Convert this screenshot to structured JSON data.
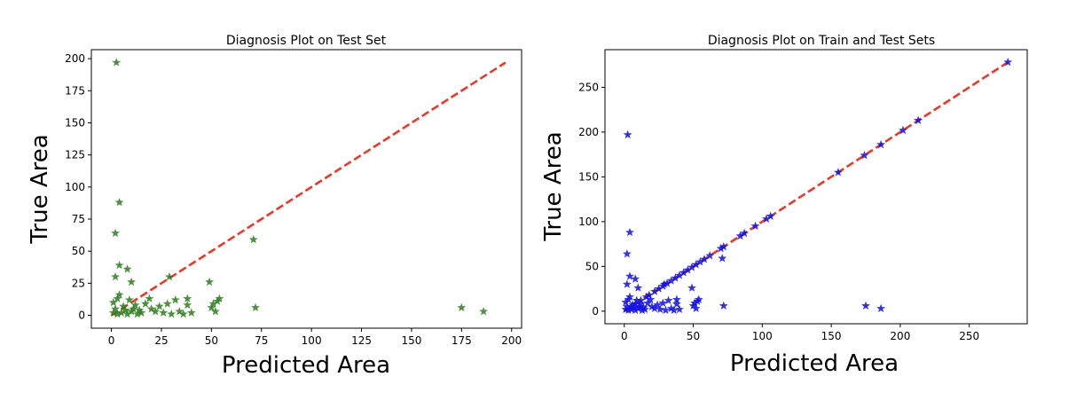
{
  "chart_data": [
    {
      "type": "scatter",
      "title": "Diagnosis Plot on Test Set",
      "xlabel": "Predicted Area",
      "ylabel": "True Area",
      "xlim": [
        -10,
        205
      ],
      "ylim": [
        -10,
        207
      ],
      "xticks": [
        0,
        25,
        50,
        75,
        100,
        125,
        150,
        175,
        200
      ],
      "yticks": [
        0,
        25,
        50,
        75,
        100,
        125,
        150,
        175,
        200
      ],
      "grid": false,
      "marker_color": "#2e7d1f",
      "reference_line": {
        "x": [
          0,
          197
        ],
        "y": [
          0,
          197
        ],
        "color": "#e8392a",
        "style": "dashed"
      },
      "points": [
        [
          2.5,
          197
        ],
        [
          4,
          88
        ],
        [
          2,
          64
        ],
        [
          4,
          39
        ],
        [
          8,
          36
        ],
        [
          2,
          30
        ],
        [
          10,
          26
        ],
        [
          1,
          10
        ],
        [
          2,
          5
        ],
        [
          3,
          13
        ],
        [
          4,
          16
        ],
        [
          5,
          2
        ],
        [
          6,
          7
        ],
        [
          7,
          4
        ],
        [
          8,
          1
        ],
        [
          9,
          12
        ],
        [
          10,
          3
        ],
        [
          11,
          5
        ],
        [
          12,
          8
        ],
        [
          13,
          1
        ],
        [
          14,
          4
        ],
        [
          3,
          1
        ],
        [
          1,
          2
        ],
        [
          15,
          2
        ],
        [
          17,
          9
        ],
        [
          19,
          13
        ],
        [
          20,
          5
        ],
        [
          22,
          3
        ],
        [
          24,
          7
        ],
        [
          26,
          2
        ],
        [
          28,
          9
        ],
        [
          29,
          30
        ],
        [
          30,
          1
        ],
        [
          32,
          12
        ],
        [
          34,
          3
        ],
        [
          36,
          1
        ],
        [
          38,
          8
        ],
        [
          38,
          13
        ],
        [
          40,
          2
        ],
        [
          49,
          26
        ],
        [
          50,
          6
        ],
        [
          51,
          9
        ],
        [
          52,
          3
        ],
        [
          53,
          11
        ],
        [
          54,
          13
        ],
        [
          71,
          59
        ],
        [
          72,
          6
        ],
        [
          175,
          6
        ],
        [
          186,
          3
        ]
      ]
    },
    {
      "type": "scatter",
      "title": "Diagnosis Plot on Train and Test Sets",
      "xlabel": "Predicted Area",
      "ylabel": "True Area",
      "xlim": [
        -14,
        292
      ],
      "ylim": [
        -14,
        292
      ],
      "xticks": [
        0,
        50,
        100,
        150,
        200,
        250
      ],
      "yticks": [
        0,
        50,
        100,
        150,
        200,
        250
      ],
      "grid": false,
      "marker_color": "#1010e0",
      "reference_line": {
        "x": [
          0,
          278
        ],
        "y": [
          0,
          278
        ],
        "color": "#e8392a",
        "style": "dashed"
      },
      "points": [
        [
          2.5,
          197
        ],
        [
          4,
          88
        ],
        [
          2,
          64
        ],
        [
          4,
          39
        ],
        [
          8,
          36
        ],
        [
          2,
          30
        ],
        [
          10,
          26
        ],
        [
          1,
          10
        ],
        [
          2,
          5
        ],
        [
          3,
          13
        ],
        [
          4,
          16
        ],
        [
          5,
          2
        ],
        [
          6,
          7
        ],
        [
          7,
          4
        ],
        [
          8,
          1
        ],
        [
          9,
          12
        ],
        [
          10,
          3
        ],
        [
          11,
          5
        ],
        [
          12,
          8
        ],
        [
          13,
          1
        ],
        [
          14,
          4
        ],
        [
          3,
          1
        ],
        [
          1,
          2
        ],
        [
          15,
          2
        ],
        [
          17,
          9
        ],
        [
          19,
          13
        ],
        [
          20,
          5
        ],
        [
          22,
          3
        ],
        [
          24,
          7
        ],
        [
          26,
          2
        ],
        [
          28,
          9
        ],
        [
          29,
          30
        ],
        [
          30,
          1
        ],
        [
          32,
          12
        ],
        [
          34,
          3
        ],
        [
          36,
          1
        ],
        [
          38,
          8
        ],
        [
          38,
          13
        ],
        [
          40,
          2
        ],
        [
          49,
          26
        ],
        [
          50,
          6
        ],
        [
          51,
          9
        ],
        [
          52,
          3
        ],
        [
          53,
          11
        ],
        [
          54,
          13
        ],
        [
          71,
          59
        ],
        [
          72,
          6
        ],
        [
          175,
          6
        ],
        [
          186,
          3
        ],
        [
          5,
          5
        ],
        [
          8,
          8
        ],
        [
          12,
          12
        ],
        [
          16,
          16
        ],
        [
          18,
          18
        ],
        [
          22,
          22
        ],
        [
          25,
          25
        ],
        [
          28,
          28
        ],
        [
          31,
          31
        ],
        [
          34,
          34
        ],
        [
          37,
          37
        ],
        [
          40,
          40
        ],
        [
          43,
          43
        ],
        [
          46,
          46
        ],
        [
          49,
          49
        ],
        [
          52,
          52
        ],
        [
          55,
          55
        ],
        [
          58,
          58
        ],
        [
          62,
          62
        ],
        [
          70,
          70
        ],
        [
          72,
          72
        ],
        [
          84,
          84
        ],
        [
          87,
          87
        ],
        [
          95,
          95
        ],
        [
          103,
          103
        ],
        [
          106,
          106
        ],
        [
          155,
          155
        ],
        [
          174,
          174
        ],
        [
          186,
          186
        ],
        [
          202,
          202
        ],
        [
          213,
          213
        ],
        [
          278,
          278
        ]
      ]
    }
  ]
}
